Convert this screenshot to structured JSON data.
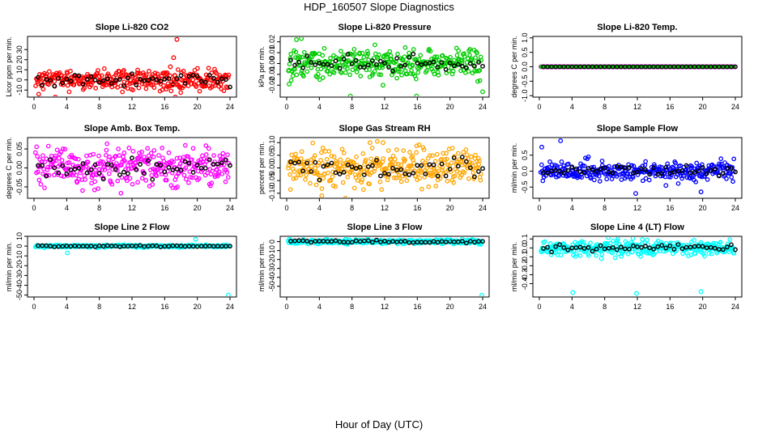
{
  "page": {
    "title": "HDP_160507  Slope Diagnostics",
    "xlabel": "Hour of Day (UTC)"
  },
  "chart_data": [
    {
      "type": "scatter",
      "title": "Slope Li-820 CO2",
      "ylabel": "Licor ppm per min.",
      "color": "#ff0000",
      "xlim": [
        0,
        24
      ],
      "xticks": [
        0,
        4,
        8,
        12,
        16,
        20,
        24
      ],
      "ylim": [
        -17,
        43
      ],
      "yticks": [
        -10,
        0,
        10,
        20,
        30
      ],
      "scatter": [
        0,
        5
      ],
      "spikes": [
        [
          16.3,
          7
        ],
        [
          16.7,
          13
        ],
        [
          17.1,
          22
        ],
        [
          17.5,
          40
        ],
        [
          17.0,
          -5
        ],
        [
          16.2,
          -9
        ],
        [
          17.3,
          -17
        ],
        [
          2.6,
          -17
        ]
      ]
    },
    {
      "type": "scatter",
      "title": "Slope Li-820 Pressure",
      "ylabel": "kPa per min.",
      "color": "#00cc00",
      "xlim": [
        0,
        24
      ],
      "xticks": [
        0,
        4,
        8,
        12,
        16,
        20,
        24
      ],
      "ylim": [
        -0.031,
        0.025
      ],
      "yticks": [
        -0.02,
        -0.01,
        0.0,
        0.01,
        0.02
      ],
      "ytickfmt": 2,
      "scatter": [
        0,
        0.007
      ],
      "spikes": [
        [
          1.2,
          0.022
        ],
        [
          1.8,
          0.023
        ],
        [
          0.3,
          -0.019
        ],
        [
          7.8,
          -0.03
        ],
        [
          15.9,
          -0.03
        ],
        [
          24,
          -0.026
        ],
        [
          11.8,
          -0.02
        ]
      ]
    },
    {
      "type": "scatter",
      "title": "Slope Li-820 Temp.",
      "ylabel": "degrees C per min.",
      "color": "#ff00ff",
      "series2": "#00cc00",
      "xlim": [
        0,
        24
      ],
      "xticks": [
        0,
        4,
        8,
        12,
        16,
        20,
        24
      ],
      "ylim": [
        -1.05,
        1.05
      ],
      "yticks": [
        -1.0,
        -0.5,
        0.0,
        0.5,
        1.0
      ],
      "ytickfmt": 1,
      "scatter": [
        0,
        0
      ],
      "spikes": []
    },
    {
      "type": "scatter",
      "title": "Slope Amb. Box Temp.",
      "ylabel": "degrees C per min.",
      "color": "#ff00ff",
      "xlim": [
        0,
        24
      ],
      "xticks": [
        0,
        4,
        8,
        12,
        16,
        20,
        24
      ],
      "ylim": [
        -0.08,
        0.08
      ],
      "yticks": [
        -0.05,
        0.0,
        0.05
      ],
      "ytickfmt": 2,
      "scatter": [
        0,
        0.025
      ],
      "spikes": []
    },
    {
      "type": "scatter",
      "title": "Slope Gas Stream RH",
      "ylabel": "percent per min.",
      "color": "#ffa500",
      "xlim": [
        0,
        24
      ],
      "xticks": [
        0,
        4,
        8,
        12,
        16,
        20,
        24
      ],
      "ylim": [
        -0.12,
        0.12
      ],
      "yticks": [
        -0.1,
        -0.05,
        0.0,
        0.05,
        0.1
      ],
      "ytickfmt": 2,
      "scatter": [
        0,
        0.035
      ],
      "spikes": [
        [
          10.2,
          0.1
        ],
        [
          11.8,
          0.1
        ],
        [
          4.3,
          -0.11
        ],
        [
          7.2,
          -0.12
        ]
      ]
    },
    {
      "type": "scatter",
      "title": "Slope Sample Flow",
      "ylabel": "ml/min per min.",
      "color": "#0000ff",
      "xlim": [
        0,
        24
      ],
      "xticks": [
        0,
        4,
        8,
        12,
        16,
        20,
        24
      ],
      "ylim": [
        -0.85,
        1.05
      ],
      "yticks": [
        -0.5,
        0,
        0.5
      ],
      "ytickfmt": 1,
      "scatter": [
        0,
        0.15
      ],
      "spikes": [
        [
          2.6,
          0.95
        ],
        [
          0.3,
          0.75
        ],
        [
          11.8,
          -0.7
        ],
        [
          19.8,
          -0.65
        ],
        [
          15.5,
          -0.45
        ]
      ]
    },
    {
      "type": "scatter",
      "title": "Slope Line 2 Flow",
      "ylabel": "ml/min per min.",
      "color": "#00ffff",
      "xlim": [
        0,
        24
      ],
      "xticks": [
        0,
        4,
        8,
        12,
        16,
        20,
        24
      ],
      "ylim": [
        -52,
        10
      ],
      "yticks": [
        -50,
        -40,
        -30,
        -20,
        -10,
        0,
        10
      ],
      "scatter": [
        0,
        0.6
      ],
      "spikes": [
        [
          4.1,
          -7
        ],
        [
          23.8,
          -50
        ],
        [
          19.8,
          7
        ]
      ]
    },
    {
      "type": "scatter",
      "title": "Slope Line 3 Flow",
      "ylabel": "ml/min per min.",
      "color": "#00ffff",
      "xlim": [
        0,
        24
      ],
      "xticks": [
        0,
        4,
        8,
        12,
        16,
        20,
        24
      ],
      "ylim": [
        -62,
        6
      ],
      "yticks": [
        -50,
        -40,
        -30,
        -20,
        -10,
        0
      ],
      "scatter": [
        0,
        1.2
      ],
      "spikes": [
        [
          23.9,
          -60
        ],
        [
          19.8,
          4
        ]
      ]
    },
    {
      "type": "scatter",
      "title": "Slope Line 4 (LT) Flow",
      "ylabel": "ml/min per min.",
      "color": "#00ffff",
      "xlim": [
        0,
        24
      ],
      "xticks": [
        0,
        4,
        8,
        12,
        16,
        20,
        24
      ],
      "ylim": [
        -0.55,
        0.13
      ],
      "yticks": [
        -0.4,
        -0.3,
        -0.2,
        -0.1,
        0.0,
        0.1
      ],
      "ytickfmt": 1,
      "scatter": [
        0,
        0.04
      ],
      "spikes": [
        [
          4.1,
          -0.5
        ],
        [
          11.9,
          -0.51
        ],
        [
          19.8,
          -0.49
        ],
        [
          7.6,
          -0.12
        ]
      ]
    }
  ]
}
